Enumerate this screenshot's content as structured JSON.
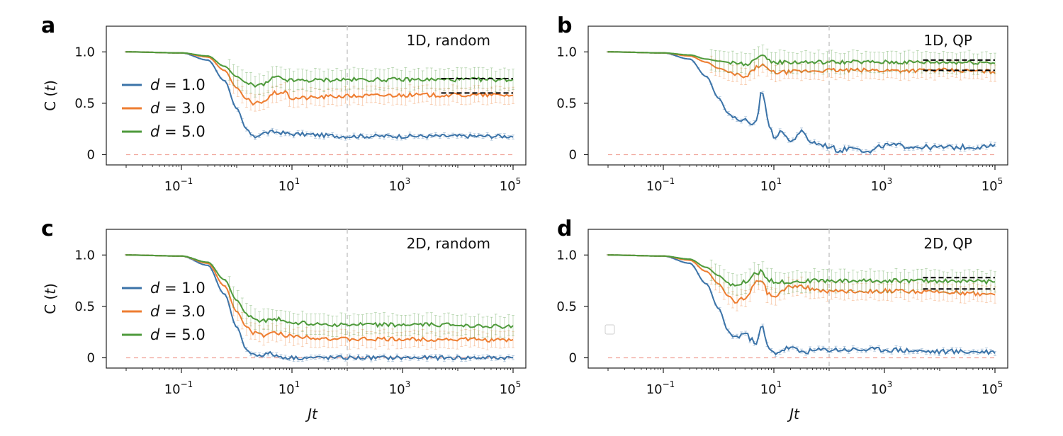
{
  "figure": {
    "xlabel": "Jt",
    "ylabel": "C (t)"
  },
  "chart_data": [
    {
      "panel": "a",
      "type": "line",
      "title": "1D, random",
      "xlabel": "Jt",
      "ylabel": "C (t)",
      "x_scale": "log",
      "xlim": [
        0.01,
        100000
      ],
      "ylim": [
        -0.1,
        1.25
      ],
      "x_ticks": [
        "10^-1",
        "10^1",
        "10^3",
        "10^5"
      ],
      "y_ticks": [
        "0",
        "0.5",
        "1.0"
      ],
      "vline_x": 100,
      "hline_y": 0,
      "legend": true,
      "legend_position": "center-left",
      "series": [
        {
          "name": "d = 1.0",
          "color": "#3b73a8",
          "values": [
            [
              0.01,
              1.0
            ],
            [
              0.1,
              0.99
            ],
            [
              0.3,
              0.92
            ],
            [
              0.6,
              0.72
            ],
            [
              1.0,
              0.45
            ],
            [
              1.5,
              0.25
            ],
            [
              2.0,
              0.17
            ],
            [
              3.0,
              0.21
            ],
            [
              5.0,
              0.22
            ],
            [
              10,
              0.2
            ],
            [
              100,
              0.18
            ],
            [
              1000,
              0.18
            ],
            [
              10000,
              0.18
            ],
            [
              100000,
              0.18
            ]
          ]
        },
        {
          "name": "d = 3.0",
          "color": "#ee7d31",
          "values": [
            [
              0.01,
              1.0
            ],
            [
              0.1,
              0.99
            ],
            [
              0.3,
              0.95
            ],
            [
              0.6,
              0.82
            ],
            [
              1.0,
              0.65
            ],
            [
              1.5,
              0.54
            ],
            [
              2.0,
              0.49
            ],
            [
              3.0,
              0.52
            ],
            [
              5.0,
              0.6
            ],
            [
              7.0,
              0.61
            ],
            [
              10,
              0.55
            ],
            [
              100,
              0.57
            ],
            [
              1000,
              0.58
            ],
            [
              10000,
              0.58
            ],
            [
              100000,
              0.58
            ]
          ]
        },
        {
          "name": "d = 5.0",
          "color": "#4e9a3b",
          "values": [
            [
              0.01,
              1.0
            ],
            [
              0.1,
              0.99
            ],
            [
              0.3,
              0.96
            ],
            [
              0.6,
              0.86
            ],
            [
              1.0,
              0.76
            ],
            [
              1.5,
              0.7
            ],
            [
              2.0,
              0.67
            ],
            [
              3.0,
              0.68
            ],
            [
              5.0,
              0.75
            ],
            [
              10,
              0.72
            ],
            [
              100,
              0.73
            ],
            [
              1000,
              0.73
            ],
            [
              10000,
              0.73
            ],
            [
              100000,
              0.73
            ]
          ]
        }
      ],
      "reference_lines": [
        {
          "y": 0.74,
          "x_range": [
            5000,
            100000
          ],
          "color": "#000000"
        },
        {
          "y": 0.6,
          "x_range": [
            5000,
            100000
          ],
          "color": "#000000"
        }
      ]
    },
    {
      "panel": "b",
      "type": "line",
      "title": "1D, QP",
      "xlabel": "Jt",
      "ylabel": "C (t)",
      "x_scale": "log",
      "xlim": [
        0.01,
        100000
      ],
      "ylim": [
        -0.1,
        1.25
      ],
      "x_ticks": [
        "10^-1",
        "10^1",
        "10^3",
        "10^5"
      ],
      "y_ticks": [
        "0",
        "0.5",
        "1.0"
      ],
      "vline_x": 100,
      "hline_y": 0,
      "legend": false,
      "series": [
        {
          "name": "d = 1.0",
          "color": "#3b73a8",
          "values": [
            [
              0.01,
              1.0
            ],
            [
              0.1,
              0.99
            ],
            [
              0.3,
              0.93
            ],
            [
              0.6,
              0.76
            ],
            [
              1.0,
              0.55
            ],
            [
              1.5,
              0.4
            ],
            [
              2.0,
              0.35
            ],
            [
              3.0,
              0.33
            ],
            [
              4.0,
              0.27
            ],
            [
              5.0,
              0.35
            ],
            [
              6.0,
              0.64
            ],
            [
              7.0,
              0.5
            ],
            [
              8.0,
              0.28
            ],
            [
              10,
              0.18
            ],
            [
              15,
              0.22
            ],
            [
              20,
              0.12
            ],
            [
              30,
              0.22
            ],
            [
              50,
              0.12
            ],
            [
              70,
              0.1
            ],
            [
              100,
              0.08
            ],
            [
              150,
              0.04
            ],
            [
              300,
              0.08
            ],
            [
              500,
              0.02
            ],
            [
              1000,
              0.09
            ],
            [
              10000,
              0.07
            ],
            [
              100000,
              0.08
            ]
          ]
        },
        {
          "name": "d = 3.0",
          "color": "#ee7d31",
          "values": [
            [
              0.01,
              1.0
            ],
            [
              0.1,
              0.99
            ],
            [
              0.3,
              0.96
            ],
            [
              0.6,
              0.9
            ],
            [
              1.0,
              0.84
            ],
            [
              2.0,
              0.78
            ],
            [
              3.0,
              0.75
            ],
            [
              5.0,
              0.85
            ],
            [
              6.0,
              0.88
            ],
            [
              8.0,
              0.82
            ],
            [
              10,
              0.8
            ],
            [
              100,
              0.82
            ],
            [
              1000,
              0.82
            ],
            [
              10000,
              0.82
            ],
            [
              100000,
              0.81
            ]
          ]
        },
        {
          "name": "d = 5.0",
          "color": "#4e9a3b",
          "values": [
            [
              0.01,
              1.0
            ],
            [
              0.1,
              0.99
            ],
            [
              0.3,
              0.97
            ],
            [
              0.6,
              0.93
            ],
            [
              1.0,
              0.91
            ],
            [
              2.0,
              0.89
            ],
            [
              3.0,
              0.88
            ],
            [
              5.0,
              0.93
            ],
            [
              6.0,
              0.95
            ],
            [
              10,
              0.9
            ],
            [
              100,
              0.9
            ],
            [
              1000,
              0.9
            ],
            [
              10000,
              0.9
            ],
            [
              100000,
              0.9
            ]
          ]
        }
      ],
      "reference_lines": [
        {
          "y": 0.92,
          "x_range": [
            5000,
            100000
          ],
          "color": "#000000"
        },
        {
          "y": 0.82,
          "x_range": [
            5000,
            100000
          ],
          "color": "#000000"
        }
      ]
    },
    {
      "panel": "c",
      "type": "line",
      "title": "2D, random",
      "xlabel": "Jt",
      "ylabel": "C (t)",
      "x_scale": "log",
      "xlim": [
        0.01,
        100000
      ],
      "ylim": [
        -0.1,
        1.25
      ],
      "x_ticks": [
        "10^-1",
        "10^1",
        "10^3",
        "10^5"
      ],
      "y_ticks": [
        "0",
        "0.5",
        "1.0"
      ],
      "vline_x": 100,
      "hline_y": 0,
      "legend": true,
      "legend_position": "center-left",
      "series": [
        {
          "name": "d = 1.0",
          "color": "#3b73a8",
          "values": [
            [
              0.01,
              1.0
            ],
            [
              0.1,
              0.99
            ],
            [
              0.3,
              0.9
            ],
            [
              0.6,
              0.62
            ],
            [
              1.0,
              0.3
            ],
            [
              1.5,
              0.08
            ],
            [
              2.0,
              0.03
            ],
            [
              3.0,
              0.03
            ],
            [
              4.0,
              0.04
            ],
            [
              6.0,
              0.01
            ],
            [
              10,
              0.0
            ],
            [
              100,
              0.0
            ],
            [
              1000,
              0.0
            ],
            [
              10000,
              0.0
            ],
            [
              100000,
              0.0
            ]
          ]
        },
        {
          "name": "d = 3.0",
          "color": "#ee7d31",
          "values": [
            [
              0.01,
              1.0
            ],
            [
              0.1,
              0.99
            ],
            [
              0.3,
              0.92
            ],
            [
              0.6,
              0.7
            ],
            [
              1.0,
              0.45
            ],
            [
              1.5,
              0.3
            ],
            [
              2.0,
              0.24
            ],
            [
              3.0,
              0.22
            ],
            [
              5.0,
              0.24
            ],
            [
              10,
              0.21
            ],
            [
              100,
              0.18
            ],
            [
              1000,
              0.18
            ],
            [
              10000,
              0.18
            ],
            [
              100000,
              0.17
            ]
          ]
        },
        {
          "name": "d = 5.0",
          "color": "#4e9a3b",
          "values": [
            [
              0.01,
              1.0
            ],
            [
              0.1,
              0.99
            ],
            [
              0.3,
              0.93
            ],
            [
              0.6,
              0.76
            ],
            [
              1.0,
              0.56
            ],
            [
              1.5,
              0.43
            ],
            [
              2.0,
              0.38
            ],
            [
              3.0,
              0.36
            ],
            [
              5.0,
              0.38
            ],
            [
              10,
              0.34
            ],
            [
              100,
              0.32
            ],
            [
              1000,
              0.32
            ],
            [
              10000,
              0.32
            ],
            [
              100000,
              0.3
            ]
          ]
        }
      ],
      "reference_lines": []
    },
    {
      "panel": "d",
      "type": "line",
      "title": "2D, QP",
      "xlabel": "Jt",
      "ylabel": "C (t)",
      "x_scale": "log",
      "xlim": [
        0.01,
        100000
      ],
      "ylim": [
        -0.1,
        1.25
      ],
      "x_ticks": [
        "10^-1",
        "10^1",
        "10^3",
        "10^5"
      ],
      "y_ticks": [
        "0",
        "0.5",
        "1.0"
      ],
      "vline_x": 100,
      "hline_y": 0,
      "legend": false,
      "series": [
        {
          "name": "d = 1.0",
          "color": "#3b73a8",
          "values": [
            [
              0.01,
              1.0
            ],
            [
              0.1,
              0.99
            ],
            [
              0.3,
              0.92
            ],
            [
              0.6,
              0.72
            ],
            [
              1.0,
              0.48
            ],
            [
              1.5,
              0.26
            ],
            [
              2.0,
              0.2
            ],
            [
              3.0,
              0.24
            ],
            [
              4.0,
              0.17
            ],
            [
              5.0,
              0.15
            ],
            [
              6.0,
              0.32
            ],
            [
              7.0,
              0.2
            ],
            [
              8.0,
              0.08
            ],
            [
              10,
              0.05
            ],
            [
              20,
              0.1
            ],
            [
              30,
              0.06
            ],
            [
              100,
              0.08
            ],
            [
              1000,
              0.08
            ],
            [
              10000,
              0.06
            ],
            [
              100000,
              0.06
            ]
          ]
        },
        {
          "name": "d = 3.0",
          "color": "#ee7d31",
          "values": [
            [
              0.01,
              1.0
            ],
            [
              0.1,
              0.99
            ],
            [
              0.3,
              0.95
            ],
            [
              0.6,
              0.84
            ],
            [
              1.0,
              0.72
            ],
            [
              1.5,
              0.6
            ],
            [
              2.0,
              0.55
            ],
            [
              3.0,
              0.58
            ],
            [
              5.0,
              0.74
            ],
            [
              6.0,
              0.76
            ],
            [
              8.0,
              0.62
            ],
            [
              10,
              0.6
            ],
            [
              20,
              0.7
            ],
            [
              100,
              0.65
            ],
            [
              1000,
              0.65
            ],
            [
              10000,
              0.64
            ],
            [
              100000,
              0.62
            ]
          ]
        },
        {
          "name": "d = 5.0",
          "color": "#4e9a3b",
          "values": [
            [
              0.01,
              1.0
            ],
            [
              0.1,
              0.99
            ],
            [
              0.3,
              0.96
            ],
            [
              0.6,
              0.88
            ],
            [
              1.0,
              0.8
            ],
            [
              1.5,
              0.73
            ],
            [
              2.0,
              0.7
            ],
            [
              3.0,
              0.74
            ],
            [
              5.0,
              0.82
            ],
            [
              6.0,
              0.84
            ],
            [
              8.0,
              0.76
            ],
            [
              10,
              0.74
            ],
            [
              100,
              0.75
            ],
            [
              1000,
              0.75
            ],
            [
              10000,
              0.75
            ],
            [
              100000,
              0.74
            ]
          ]
        }
      ],
      "reference_lines": [
        {
          "y": 0.78,
          "x_range": [
            5000,
            100000
          ],
          "color": "#000000"
        },
        {
          "y": 0.67,
          "x_range": [
            5000,
            100000
          ],
          "color": "#000000"
        }
      ]
    }
  ]
}
